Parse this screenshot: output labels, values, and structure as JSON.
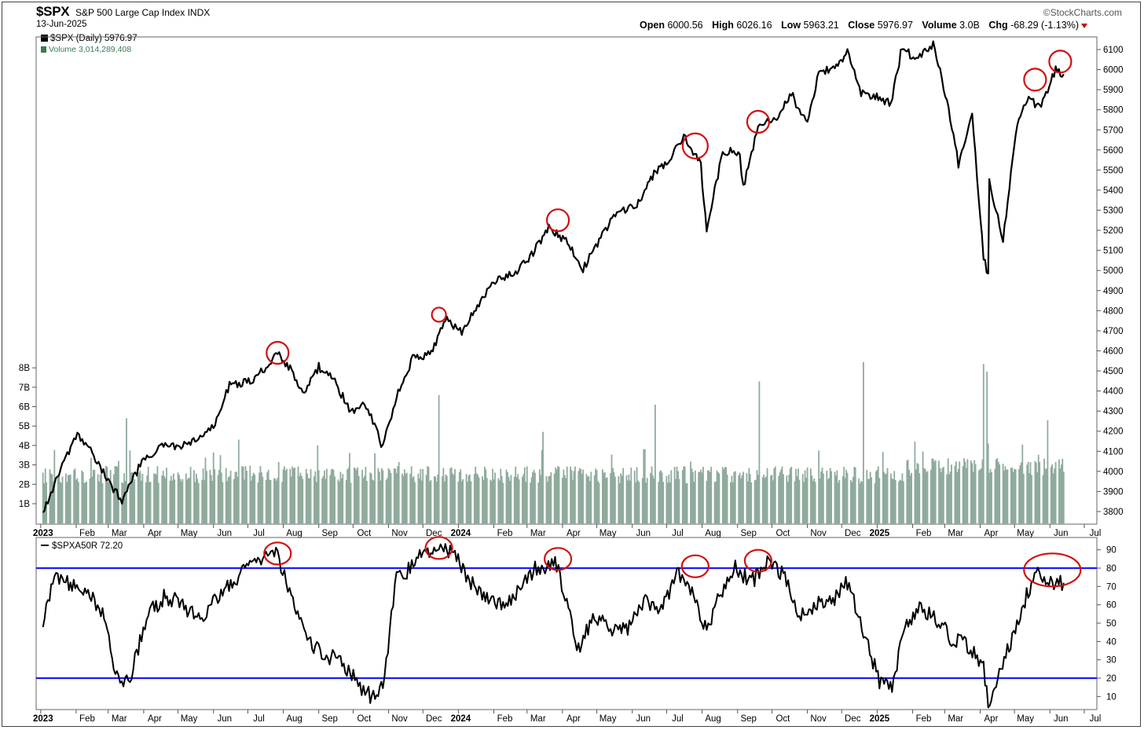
{
  "header": {
    "symbol": "$SPX",
    "name": "S&P 500 Large Cap Index",
    "exchange": "INDX",
    "date": "13-Jun-2025",
    "brand": "©StockCharts.com",
    "ohlc": {
      "open_label": "Open",
      "open": "6000.56",
      "high_label": "High",
      "high": "6026.16",
      "low_label": "Low",
      "low": "5963.21",
      "close_label": "Close",
      "close": "5976.97",
      "volume_label": "Volume",
      "volume": "3.0B",
      "chg_label": "Chg",
      "chg": "-68.29 (-1.13%)"
    }
  },
  "legend": {
    "price": "$SPX (Daily) 5976.97",
    "volume": "Volume 3,014,289,408",
    "indicator": "$SPXA50R 72.20"
  },
  "colors": {
    "price_line": "#000000",
    "volume_bar": "#8fab9c",
    "highlight_circle": "#d01010",
    "threshold_line": "#1a1aff",
    "volume_text": "#3a7a55"
  },
  "chart_data": [
    {
      "type": "line",
      "series": [
        {
          "name": "$SPX (Daily)",
          "x": [
            "2023-01-03",
            "2023-01-17",
            "2023-02-02",
            "2023-02-15",
            "2023-03-01",
            "2023-03-13",
            "2023-03-29",
            "2023-04-17",
            "2023-05-01",
            "2023-05-16",
            "2023-06-01",
            "2023-06-15",
            "2023-07-03",
            "2023-07-14",
            "2023-07-27",
            "2023-08-07",
            "2023-08-18",
            "2023-09-01",
            "2023-09-15",
            "2023-09-29",
            "2023-10-11",
            "2023-10-27",
            "2023-11-08",
            "2023-11-22",
            "2023-12-07",
            "2023-12-22",
            "2024-01-04",
            "2024-01-19",
            "2024-02-05",
            "2024-02-20",
            "2024-03-05",
            "2024-03-20",
            "2024-04-04",
            "2024-04-19",
            "2024-05-03",
            "2024-05-20",
            "2024-06-05",
            "2024-06-20",
            "2024-07-05",
            "2024-07-16",
            "2024-07-31",
            "2024-08-05",
            "2024-08-19",
            "2024-09-03",
            "2024-09-06",
            "2024-09-19",
            "2024-10-04",
            "2024-10-18",
            "2024-11-01",
            "2024-11-11",
            "2024-11-25",
            "2024-12-06",
            "2024-12-18",
            "2025-01-02",
            "2025-01-13",
            "2025-01-23",
            "2025-02-03",
            "2025-02-19",
            "2025-03-03",
            "2025-03-13",
            "2025-03-25",
            "2025-04-04",
            "2025-04-08",
            "2025-04-09",
            "2025-04-21",
            "2025-05-02",
            "2025-05-12",
            "2025-05-23",
            "2025-06-06",
            "2025-06-13"
          ],
          "values": [
            3800,
            3990,
            4180,
            4090,
            3950,
            3860,
            4030,
            4130,
            4120,
            4150,
            4220,
            4430,
            4450,
            4500,
            4590,
            4510,
            4380,
            4520,
            4450,
            4290,
            4350,
            4120,
            4380,
            4560,
            4580,
            4760,
            4690,
            4840,
            4960,
            4980,
            5080,
            5210,
            5150,
            5010,
            5150,
            5300,
            5320,
            5480,
            5560,
            5670,
            5520,
            5190,
            5600,
            5580,
            5410,
            5720,
            5750,
            5880,
            5720,
            5990,
            6000,
            6090,
            5880,
            5860,
            5830,
            6120,
            6050,
            6130,
            5850,
            5530,
            5780,
            5070,
            4980,
            5450,
            5150,
            5690,
            5860,
            5810,
            6000,
            5977
          ]
        }
      ],
      "volume": {
        "name": "Volume",
        "unit": "B",
        "x": [
          "2023-01-03",
          "2023-03-10",
          "2023-03-17",
          "2023-06-23",
          "2023-08-31",
          "2023-10-20",
          "2023-12-15",
          "2024-03-15",
          "2024-06-21",
          "2024-09-20",
          "2024-12-20",
          "2025-04-04",
          "2025-04-07",
          "2025-05-30"
        ],
        "values": [
          2.6,
          3.2,
          5.4,
          4.3,
          4.0,
          3.6,
          6.6,
          4.7,
          6.1,
          7.3,
          8.3,
          8.2,
          7.8,
          5.3
        ]
      },
      "ylim": [
        3750,
        6170
      ],
      "y_ticks": [
        3800,
        3900,
        4000,
        4100,
        4200,
        4300,
        4400,
        4500,
        4600,
        4700,
        4800,
        4900,
        5000,
        5100,
        5200,
        5300,
        5400,
        5500,
        5600,
        5700,
        5800,
        5900,
        6000,
        6100
      ],
      "volume_ticks": [
        "1B",
        "2B",
        "3B",
        "4B",
        "5B",
        "6B",
        "7B",
        "8B"
      ],
      "x_ticks": [
        "2023",
        "Feb",
        "Mar",
        "Apr",
        "May",
        "Jun",
        "Jul",
        "Aug",
        "Sep",
        "Oct",
        "Nov",
        "Dec",
        "2024",
        "Feb",
        "Mar",
        "Apr",
        "May",
        "Jun",
        "Jul",
        "Aug",
        "Sep",
        "Oct",
        "Nov",
        "Dec",
        "2025",
        "Feb",
        "Mar",
        "Apr",
        "May",
        "Jun",
        "Jul"
      ],
      "annotations": [
        {
          "type": "circle",
          "x": "2023-07-27",
          "y": 4590
        },
        {
          "type": "circle",
          "x": "2023-12-15",
          "y": 4780
        },
        {
          "type": "circle",
          "x": "2024-03-28",
          "y": 5250
        },
        {
          "type": "circle",
          "x": "2024-07-26",
          "y": 5620
        },
        {
          "type": "circle",
          "x": "2024-09-19",
          "y": 5740
        },
        {
          "type": "circle",
          "x": "2025-05-19",
          "y": 5950
        },
        {
          "type": "circle",
          "x": "2025-06-10",
          "y": 6040
        }
      ],
      "grid": false
    },
    {
      "type": "line",
      "series": [
        {
          "name": "$SPXA50R",
          "x": [
            "2023-01-03",
            "2023-01-13",
            "2023-01-27",
            "2023-02-10",
            "2023-02-24",
            "2023-03-10",
            "2023-03-20",
            "2023-04-05",
            "2023-04-20",
            "2023-05-05",
            "2023-05-19",
            "2023-06-02",
            "2023-06-16",
            "2023-06-30",
            "2023-07-14",
            "2023-07-27",
            "2023-08-08",
            "2023-08-22",
            "2023-09-05",
            "2023-09-20",
            "2023-10-04",
            "2023-10-16",
            "2023-10-27",
            "2023-11-08",
            "2023-11-17",
            "2023-12-01",
            "2023-12-15",
            "2023-12-29",
            "2024-01-12",
            "2024-01-26",
            "2024-02-09",
            "2024-02-23",
            "2024-03-08",
            "2024-03-27",
            "2024-04-15",
            "2024-04-29",
            "2024-05-13",
            "2024-05-28",
            "2024-06-11",
            "2024-06-25",
            "2024-07-10",
            "2024-07-19",
            "2024-08-05",
            "2024-08-16",
            "2024-08-30",
            "2024-09-13",
            "2024-09-27",
            "2024-10-11",
            "2024-10-25",
            "2024-11-08",
            "2024-11-22",
            "2024-12-06",
            "2024-12-20",
            "2025-01-03",
            "2025-01-14",
            "2025-01-24",
            "2025-02-07",
            "2025-02-21",
            "2025-03-07",
            "2025-03-21",
            "2025-04-04",
            "2025-04-08",
            "2025-04-22",
            "2025-05-06",
            "2025-05-20",
            "2025-06-03",
            "2025-06-13"
          ],
          "values": [
            50,
            78,
            70,
            68,
            55,
            18,
            20,
            55,
            65,
            60,
            52,
            62,
            72,
            80,
            85,
            88,
            62,
            40,
            33,
            30,
            18,
            10,
            15,
            75,
            78,
            88,
            92,
            88,
            72,
            65,
            60,
            68,
            80,
            82,
            35,
            55,
            45,
            48,
            62,
            55,
            78,
            72,
            45,
            65,
            80,
            72,
            84,
            76,
            55,
            60,
            62,
            72,
            45,
            18,
            15,
            45,
            58,
            52,
            42,
            38,
            25,
            5,
            30,
            55,
            80,
            72,
            72
          ]
        }
      ],
      "ylim": [
        0,
        95
      ],
      "y_ticks": [
        10,
        20,
        30,
        40,
        50,
        60,
        70,
        80,
        90
      ],
      "hlines": [
        80,
        20
      ],
      "x_ticks": [
        "2023",
        "Feb",
        "Mar",
        "Apr",
        "May",
        "Jun",
        "Jul",
        "Aug",
        "Sep",
        "Oct",
        "Nov",
        "Dec",
        "2024",
        "Feb",
        "Mar",
        "Apr",
        "May",
        "Jun",
        "Jul",
        "Aug",
        "Sep",
        "Oct",
        "Nov",
        "Dec",
        "2025",
        "Feb",
        "Mar",
        "Apr",
        "May",
        "Jun",
        "Jul"
      ],
      "annotations": [
        {
          "type": "circle",
          "x": "2023-07-27",
          "y": 88
        },
        {
          "type": "circle",
          "x": "2023-12-15",
          "y": 91
        },
        {
          "type": "circle",
          "x": "2024-03-28",
          "y": 85
        },
        {
          "type": "circle",
          "x": "2024-07-26",
          "y": 81
        },
        {
          "type": "circle",
          "x": "2024-09-19",
          "y": 84
        },
        {
          "type": "ellipse",
          "x": "2025-06-01",
          "y": 79
        }
      ],
      "grid": false
    }
  ]
}
